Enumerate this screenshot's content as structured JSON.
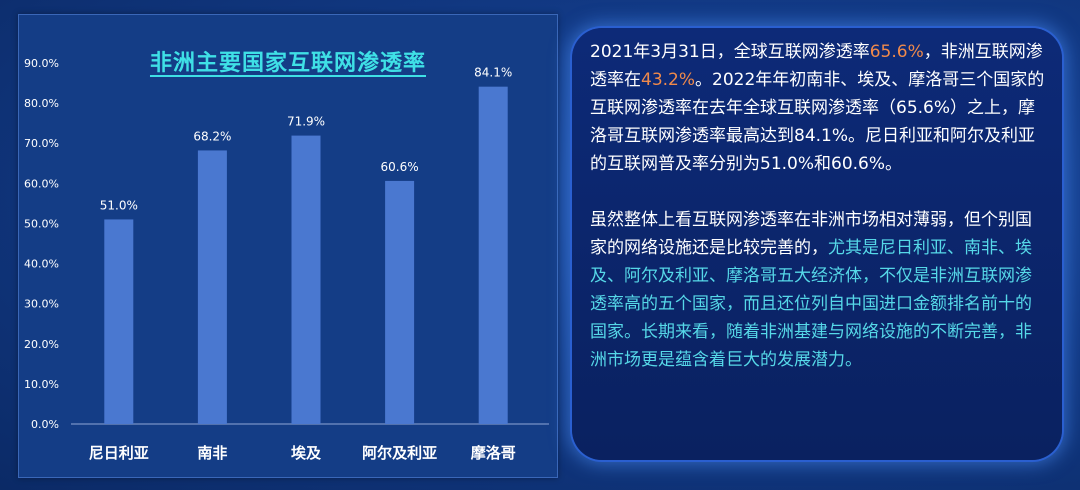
{
  "chart_data": {
    "type": "bar",
    "title": "非洲主要国家互联网渗透率",
    "categories": [
      "尼日利亚",
      "南非",
      "埃及",
      "阿尔及利亚",
      "摩洛哥"
    ],
    "values": [
      51.0,
      68.2,
      71.9,
      60.6,
      84.1
    ],
    "value_labels": [
      "51.0%",
      "68.2%",
      "71.9%",
      "60.6%",
      "84.1%"
    ],
    "ylim": [
      0,
      90
    ],
    "yticks": [
      0,
      10,
      20,
      30,
      40,
      50,
      60,
      70,
      80,
      90
    ],
    "ytick_labels": [
      "0.0%",
      "10.0%",
      "20.0%",
      "30.0%",
      "40.0%",
      "50.0%",
      "60.0%",
      "70.0%",
      "80.0%",
      "90.0%"
    ],
    "grid": false,
    "bar_color": "#4a78d0"
  },
  "text_panel": {
    "p1": {
      "t1": "2021年3月31日，全球互联网渗透率",
      "h1": "65.6%",
      "t2": "，非洲互联网渗透率在",
      "h2": "43.2%",
      "t3": "。2022年年初南非、埃及、摩洛哥三个国家的互联网渗透率在去年全球互联网渗透率（65.6%）之上，摩洛哥互联网渗透率最高达到84.1%。尼日利亚和阿尔及利亚的互联网普及率分别为51.0%和60.6%。"
    },
    "p2": {
      "t1": "虽然整体上看互联网渗透率在非洲市场相对薄弱，但个别国家的网络设施还是比较完善的，",
      "h1": "尤其是尼日利亚、南非、埃及、阿尔及利亚、摩洛哥五大经济体，不仅是非洲互联网渗透率高的五个国家，而且还位列自中国进口金额排名前十的国家。长期来看，随着非洲基建与网络设施的不断完善，非洲市场更是蕴含着巨大的发展潜力。"
    },
    "colors": {
      "orange": "#f08a4b",
      "cyan": "#56d8e8"
    }
  }
}
